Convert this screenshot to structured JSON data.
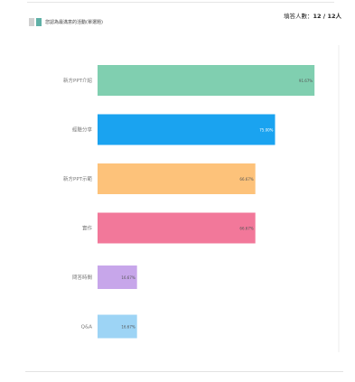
{
  "header": {
    "legend_text": "您認為最滿意的活動(單選題)",
    "respondents_label": "填答人數：",
    "respondents_value": "12 / 12人"
  },
  "chart_data": {
    "type": "bar",
    "orientation": "horizontal",
    "categories": [
      "新方PPT介紹",
      "經驗分享",
      "新方PPT示範",
      "實作",
      "問答時間",
      "Q&A"
    ],
    "values": [
      91.67,
      75,
      66.67,
      66.67,
      16.67,
      16.67
    ],
    "value_labels": [
      "91.67%",
      "75.00%",
      "66.67%",
      "66.67%",
      "16.67%",
      "16.67%"
    ],
    "colors": [
      "#80cfb0",
      "#1aa3f0",
      "#fdc27a",
      "#f2789a",
      "#c7a6ea",
      "#9dd4f5"
    ],
    "xlim": [
      0,
      100
    ]
  }
}
